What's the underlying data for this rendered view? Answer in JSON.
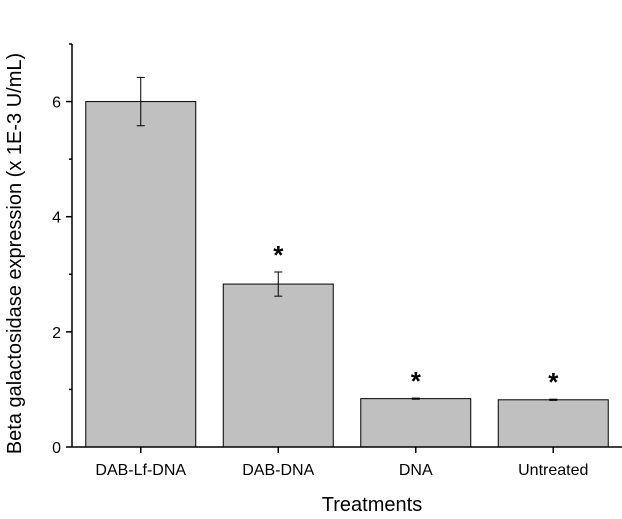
{
  "chart_data": {
    "type": "bar",
    "categories": [
      "DAB-Lf-DNA",
      "DAB-DNA",
      "DNA",
      "Untreated"
    ],
    "values": [
      6.0,
      2.83,
      0.84,
      0.82
    ],
    "errors": [
      0.42,
      0.21,
      0.01,
      0.01
    ],
    "significance": [
      "",
      "*",
      "*",
      "*"
    ],
    "xlabel": "Treatments",
    "ylabel": "Beta galactosidase expression (x 1E-3 U/mL)",
    "ylim": [
      0,
      7
    ],
    "yticks": [
      0,
      2,
      4,
      6
    ],
    "ytick_labels": [
      "0",
      "2",
      "4",
      "6"
    ],
    "grid": false,
    "colors": {
      "bar_fill": "#c0c0c0",
      "bar_stroke": "#000000",
      "axis": "#000000"
    }
  }
}
